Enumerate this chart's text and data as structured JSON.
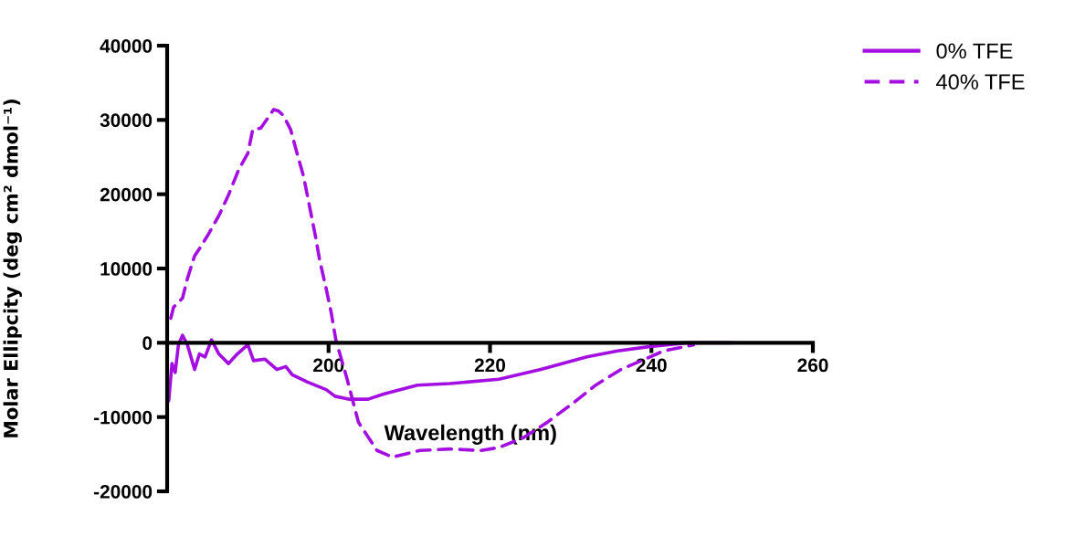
{
  "chart_data": {
    "type": "line",
    "xlabel": "Wavelength (nm)",
    "ylabel": "Molar Ellipcity (deg cm² dmol⁻¹)",
    "xlim": [
      180,
      260
    ],
    "xticks": [
      200,
      220,
      240,
      260
    ],
    "ylim": [
      -20000,
      40000
    ],
    "yticks": [
      -20000,
      -10000,
      0,
      10000,
      20000,
      30000,
      40000
    ],
    "grid": false,
    "legend": "top right",
    "marker": "none",
    "series": [
      {
        "name": "0% TFE",
        "color": "#a30fe0",
        "line_style": "solid",
        "x": [
          180.2,
          180.6,
          181,
          181.4,
          181.9,
          182.5,
          183.4,
          184,
          184.7,
          185.5,
          186.4,
          187.6,
          188.7,
          190,
          190.7,
          192.1,
          193.6,
          194.7,
          195.5,
          197.4,
          199.7,
          200.8,
          202.6,
          204.9,
          206.8,
          211,
          215,
          221.1,
          226.3,
          232,
          235.8,
          239.9,
          244.4,
          250
        ],
        "values": [
          -7800,
          -2800,
          -4000,
          -250,
          1000,
          -250,
          -3600,
          -1500,
          -1900,
          400,
          -1500,
          -2800,
          -1500,
          -250,
          -2400,
          -2200,
          -3600,
          -3200,
          -4300,
          -5300,
          -6300,
          -7200,
          -7600,
          -7600,
          -6900,
          -5700,
          -5500,
          -4900,
          -3600,
          -1900,
          -1100,
          -500,
          0,
          0
        ]
      },
      {
        "name": "40% TFE",
        "color": "#a30fe0",
        "line_style": "dashed",
        "x": [
          180.45,
          180.8,
          181.9,
          182.5,
          183.4,
          184.2,
          185.1,
          186.4,
          187.6,
          188.9,
          190,
          190.6,
          191.6,
          192.7,
          193.2,
          193.8,
          194.4,
          195.3,
          196.1,
          196.9,
          197.6,
          198.4,
          198.9,
          199.7,
          200.3,
          200.9,
          202.3,
          203.7,
          206,
          207.9,
          211.3,
          215,
          218.9,
          221.1,
          224.1,
          227.1,
          230.2,
          233.1,
          236.2,
          239.2,
          241.5,
          245.2
        ],
        "values": [
          3300,
          4800,
          6000,
          8600,
          11700,
          13000,
          14600,
          17100,
          19900,
          23400,
          25500,
          28700,
          28900,
          30600,
          31400,
          31200,
          30600,
          28700,
          25500,
          22400,
          18600,
          14200,
          11100,
          7300,
          4200,
          400,
          -4900,
          -10700,
          -14500,
          -15400,
          -14500,
          -14300,
          -14500,
          -14100,
          -12800,
          -10700,
          -8200,
          -5700,
          -3600,
          -2200,
          -1100,
          -300
        ]
      }
    ]
  }
}
